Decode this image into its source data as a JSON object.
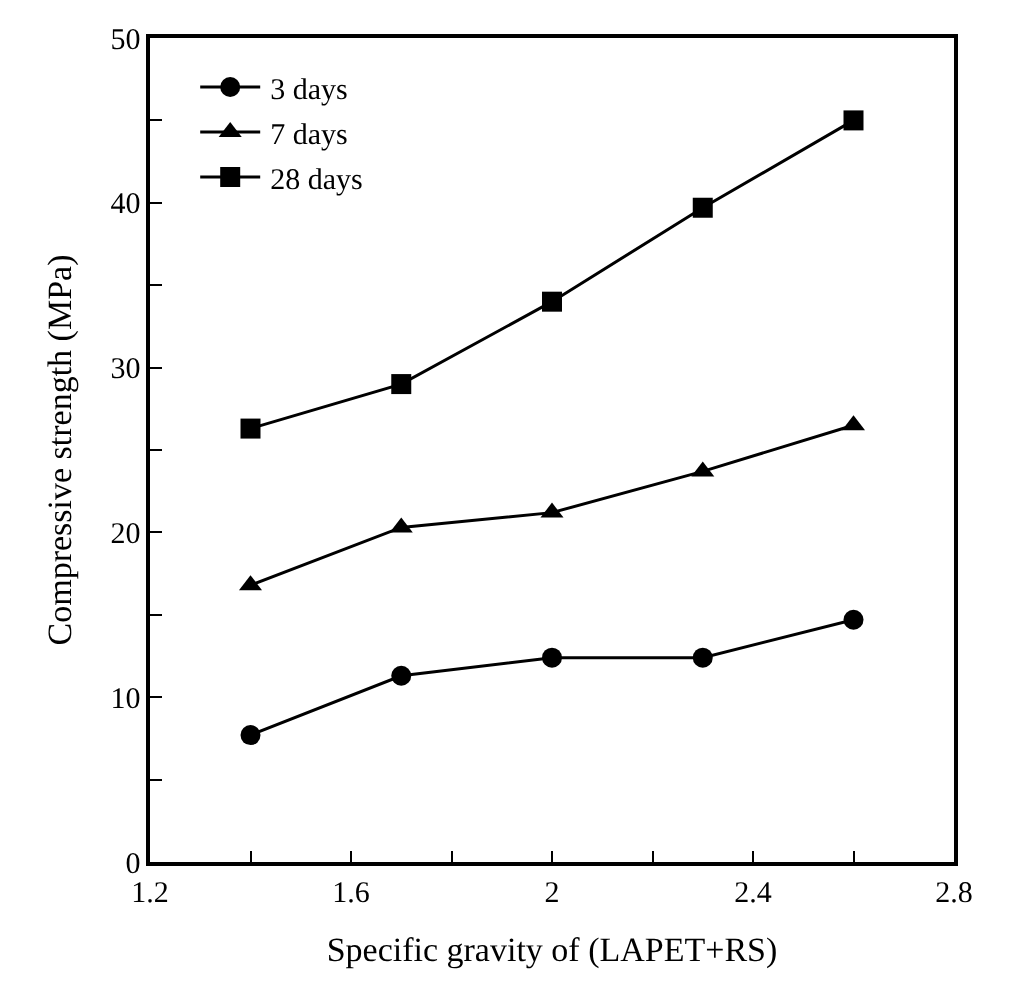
{
  "chart_data": {
    "type": "line",
    "xlabel": "Specific gravity of (LAPET+RS)",
    "ylabel": "Compressive strength (MPa)",
    "x": [
      1.4,
      1.7,
      2.0,
      2.3,
      2.6
    ],
    "series": [
      {
        "name": "3 days",
        "color": "#000000",
        "marker": "circle",
        "values": [
          7.7,
          11.3,
          12.4,
          12.4,
          14.7
        ]
      },
      {
        "name": "7 days",
        "color": "#000000",
        "marker": "triangle",
        "values": [
          16.8,
          20.3,
          21.2,
          23.7,
          26.5
        ]
      },
      {
        "name": "28 days",
        "color": "#000000",
        "marker": "square",
        "values": [
          26.3,
          29.0,
          34.0,
          39.7,
          45.0
        ]
      }
    ],
    "xlim": [
      1.2,
      2.8
    ],
    "xticks": [
      1.2,
      {
        "value": 1.4,
        "label": null
      },
      1.6,
      {
        "value": 1.8,
        "label": null
      },
      2,
      {
        "value": 2.2,
        "label": null
      },
      2.4,
      {
        "value": 2.6,
        "label": null
      },
      2.8
    ],
    "ylim": [
      0,
      50
    ],
    "yticks": [
      0,
      {
        "value": 5,
        "label": null
      },
      10,
      {
        "value": 15,
        "label": null
      },
      20,
      {
        "value": 25,
        "label": null
      },
      30,
      {
        "value": 35,
        "label": null
      },
      40,
      {
        "value": 45,
        "label": null
      },
      50
    ],
    "legend": "top left",
    "line_style": "solid"
  }
}
